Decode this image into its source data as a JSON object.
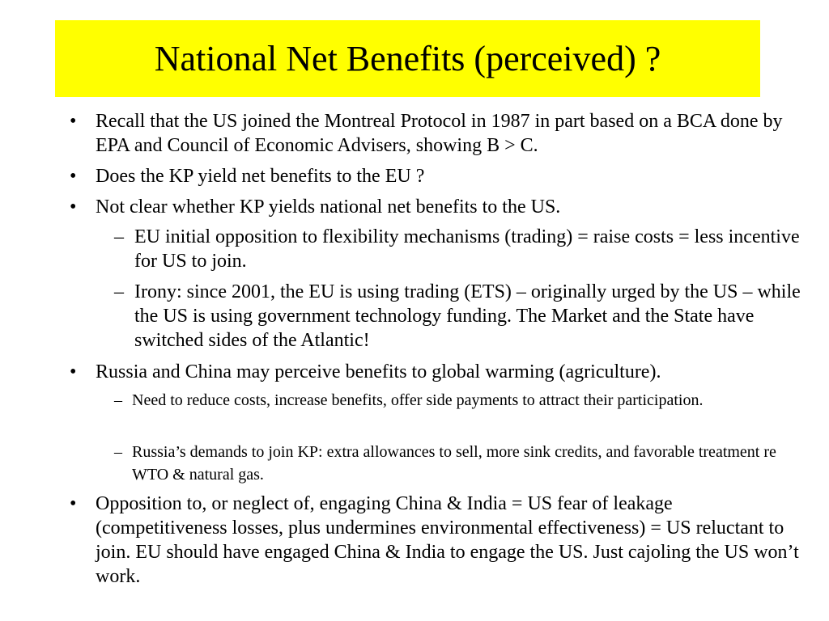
{
  "slide": {
    "title": "National Net Benefits (perceived) ?",
    "bullet_symbol": "•",
    "dash_symbol": "–",
    "items": [
      {
        "level": 1,
        "text": "Recall that the US joined the Montreal Protocol in 1987 in part based on a BCA done by EPA and Council of Economic Advisers, showing B > C."
      },
      {
        "level": 1,
        "text": "Does the KP yield net benefits to the EU ?"
      },
      {
        "level": 1,
        "text": "Not clear whether KP yields national net benefits to the US."
      },
      {
        "level": 2,
        "text": "EU initial opposition to flexibility mechanisms (trading) = raise costs = less incentive for US to join."
      },
      {
        "level": 2,
        "text": "Irony: since 2001, the EU is using trading (ETS) – originally urged by the US – while the US is using government technology funding.  The Market and the State have switched sides of the Atlantic!"
      },
      {
        "level": 1,
        "text": "Russia and China may perceive benefits to global warming (agriculture)."
      },
      {
        "level": 2,
        "text": "Need to reduce costs, increase benefits, offer side payments to attract their participation."
      },
      {
        "level": 2,
        "text": "Russia’s demands to join KP:  extra allowances to sell, more sink credits, and favorable treatment re WTO & natural gas."
      },
      {
        "level": 1,
        "text": "Opposition to, or neglect of, engaging China & India = US fear of leakage (competitiveness losses, plus undermines environmental effectiveness) = US reluctant to join.  EU should have engaged China & India to engage the US.  Just cajoling the US won’t work."
      }
    ]
  }
}
